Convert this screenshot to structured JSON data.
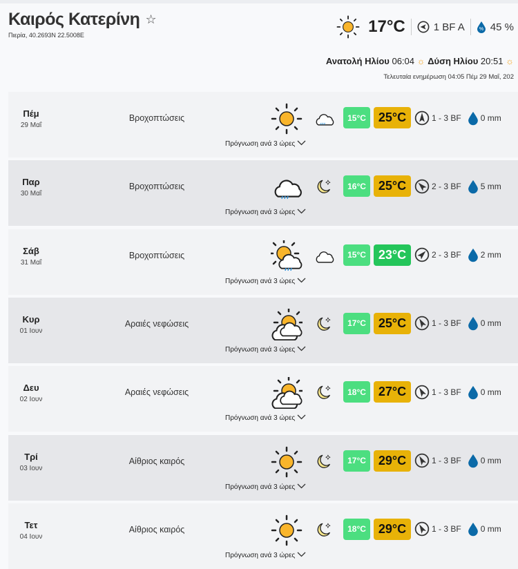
{
  "header": {
    "title": "Καιρός Κατερίνη",
    "coords": "Πιερία, 40.2693N 22.5008E",
    "current_temp": "17°C",
    "current_wind": "1 BF A",
    "humidity": "45 %",
    "sunrise_label": "Ανατολή Ηλίου",
    "sunrise": "06:04",
    "sunset_label": "Δύση Ηλίου",
    "sunset": "20:51",
    "updated": "Τελευταία ενημέρωση 04:05 Πέμ 29 Μαΐ, 202"
  },
  "forecast_label": "Πρόγνωση ανά 3 ώρες",
  "days": [
    {
      "day": "Πέμ",
      "date": "29 Μαΐ",
      "cond": "Βροχοπτώσεις",
      "icon": "sun",
      "night": "cloud-rain-small",
      "min": "15°C",
      "max": "25°C",
      "wind": "1 - 3 BF",
      "rot": 0,
      "rain": "0 mm"
    },
    {
      "day": "Παρ",
      "date": "30 Μαΐ",
      "cond": "Βροχοπτώσεις",
      "icon": "cloud-rain",
      "night": "moon",
      "min": "16°C",
      "max": "25°C",
      "wind": "2 - 3 BF",
      "rot": -45,
      "rain": "5 mm"
    },
    {
      "day": "Σάβ",
      "date": "31 Μαΐ",
      "cond": "Βροχοπτώσεις",
      "icon": "sun-cloud-rain",
      "night": "cloud",
      "min": "15°C",
      "max": "23°C",
      "wind": "2 - 3 BF",
      "rot": 45,
      "rain": "2 mm",
      "max_color": "#24c55a"
    },
    {
      "day": "Κυρ",
      "date": "01 Ιουν",
      "cond": "Αραιές νεφώσεις",
      "icon": "sun-cloud",
      "night": "moon",
      "min": "17°C",
      "max": "25°C",
      "wind": "1 - 3 BF",
      "rot": -30,
      "rain": "0 mm"
    },
    {
      "day": "Δευ",
      "date": "02 Ιουν",
      "cond": "Αραιές νεφώσεις",
      "icon": "sun-cloud",
      "night": "moon",
      "min": "18°C",
      "max": "27°C",
      "wind": "1 - 3 BF",
      "rot": -30,
      "rain": "0 mm"
    },
    {
      "day": "Τρί",
      "date": "03 Ιουν",
      "cond": "Αίθριος καιρός",
      "icon": "sun",
      "night": "moon",
      "min": "17°C",
      "max": "29°C",
      "wind": "1 - 3 BF",
      "rot": -30,
      "rain": "0 mm"
    },
    {
      "day": "Τετ",
      "date": "04 Ιουν",
      "cond": "Αίθριος καιρός",
      "icon": "sun",
      "night": "moon",
      "min": "18°C",
      "max": "29°C",
      "wind": "1 - 3 BF",
      "rot": -30,
      "rain": "0 mm"
    }
  ],
  "colors": {
    "min_badge": "#4cde80",
    "max_badge": "#e8b208",
    "max_badge_cool": "#24c55a",
    "rain_drop": "#0b6aa8"
  }
}
